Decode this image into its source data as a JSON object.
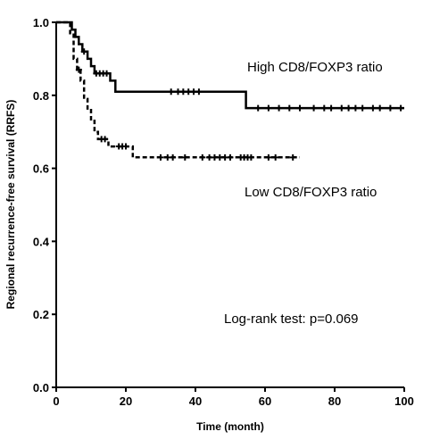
{
  "chart_data": {
    "type": "line",
    "xlabel": "Time (month)",
    "ylabel": "Regional recurrence-free survival (RRFS)",
    "xlim": [
      0,
      100
    ],
    "ylim": [
      0,
      1.0
    ],
    "xticks": [
      "0",
      "20",
      "40",
      "60",
      "80",
      "100"
    ],
    "yticks": [
      "0.0",
      "0.2",
      "0.4",
      "0.6",
      "0.8",
      "1.0"
    ],
    "grid": false,
    "series": [
      {
        "name": "High CD8/FOXP3 ratio",
        "style": "solid",
        "steps": [
          [
            0,
            1.0
          ],
          [
            4.5,
            1.0
          ],
          [
            4.5,
            0.98
          ],
          [
            5.5,
            0.98
          ],
          [
            5.5,
            0.96
          ],
          [
            6.5,
            0.96
          ],
          [
            6.5,
            0.94
          ],
          [
            7.5,
            0.94
          ],
          [
            7.5,
            0.92
          ],
          [
            9,
            0.92
          ],
          [
            9,
            0.9
          ],
          [
            10,
            0.9
          ],
          [
            10,
            0.88
          ],
          [
            11,
            0.88
          ],
          [
            11,
            0.86
          ],
          [
            15.5,
            0.86
          ],
          [
            15.5,
            0.84
          ],
          [
            17,
            0.84
          ],
          [
            17,
            0.81
          ],
          [
            54.5,
            0.81
          ],
          [
            54.5,
            0.765
          ],
          [
            100,
            0.765
          ]
        ],
        "censored": [
          [
            8,
            0.92
          ],
          [
            11.5,
            0.86
          ],
          [
            12.5,
            0.86
          ],
          [
            13.5,
            0.86
          ],
          [
            14.5,
            0.86
          ],
          [
            33,
            0.81
          ],
          [
            35,
            0.81
          ],
          [
            36.5,
            0.81
          ],
          [
            38,
            0.81
          ],
          [
            39.5,
            0.81
          ],
          [
            41,
            0.81
          ],
          [
            58,
            0.765
          ],
          [
            61,
            0.765
          ],
          [
            64,
            0.765
          ],
          [
            67,
            0.765
          ],
          [
            70,
            0.765
          ],
          [
            74,
            0.765
          ],
          [
            77,
            0.765
          ],
          [
            79,
            0.765
          ],
          [
            82,
            0.765
          ],
          [
            84,
            0.765
          ],
          [
            86,
            0.765
          ],
          [
            88,
            0.765
          ],
          [
            91,
            0.765
          ],
          [
            93,
            0.765
          ],
          [
            96,
            0.765
          ],
          [
            99,
            0.765
          ]
        ]
      },
      {
        "name": "Low CD8/FOXP3 ratio",
        "style": "dashed",
        "steps": [
          [
            0,
            1.0
          ],
          [
            4,
            1.0
          ],
          [
            4,
            0.97
          ],
          [
            5,
            0.97
          ],
          [
            5,
            0.9
          ],
          [
            6,
            0.9
          ],
          [
            6,
            0.87
          ],
          [
            7,
            0.87
          ],
          [
            7,
            0.84
          ],
          [
            8,
            0.84
          ],
          [
            8,
            0.79
          ],
          [
            9,
            0.79
          ],
          [
            9,
            0.76
          ],
          [
            10,
            0.76
          ],
          [
            10,
            0.73
          ],
          [
            11,
            0.73
          ],
          [
            11,
            0.7
          ],
          [
            12,
            0.7
          ],
          [
            12,
            0.68
          ],
          [
            15,
            0.68
          ],
          [
            15,
            0.66
          ],
          [
            22,
            0.66
          ],
          [
            22,
            0.63
          ],
          [
            70,
            0.63
          ]
        ],
        "censored": [
          [
            6.5,
            0.87
          ],
          [
            13,
            0.68
          ],
          [
            14,
            0.68
          ],
          [
            18,
            0.66
          ],
          [
            19,
            0.66
          ],
          [
            20,
            0.66
          ],
          [
            30,
            0.63
          ],
          [
            32,
            0.63
          ],
          [
            33.5,
            0.63
          ],
          [
            37,
            0.63
          ],
          [
            42,
            0.63
          ],
          [
            44,
            0.63
          ],
          [
            45.5,
            0.63
          ],
          [
            47,
            0.63
          ],
          [
            48.5,
            0.63
          ],
          [
            50,
            0.63
          ],
          [
            53,
            0.63
          ],
          [
            54,
            0.63
          ],
          [
            55,
            0.63
          ],
          [
            56,
            0.63
          ],
          [
            61,
            0.63
          ],
          [
            63,
            0.63
          ],
          [
            68,
            0.63
          ]
        ]
      }
    ],
    "annotations": {
      "high": "High CD8/FOXP3 ratio",
      "low": "Low CD8/FOXP3 ratio",
      "test": "Log-rank test: p=0.069"
    }
  }
}
